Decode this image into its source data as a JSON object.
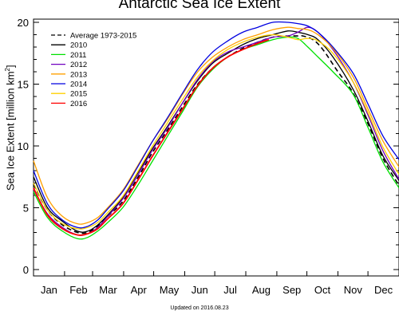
{
  "chart_data": {
    "type": "line",
    "title": "Antarctic Sea Ice Extent",
    "ylabel": "Sea Ice Extent [million km",
    "ylabel_unit_superscript": "2",
    "ylabel_close": "]",
    "xlabel": "",
    "footer": "Updated on 2016.08.23",
    "x_unit": "day of year",
    "xlim": [
      1,
      366
    ],
    "ylim": [
      0,
      20
    ],
    "yticks": [
      0,
      5,
      10,
      15,
      20
    ],
    "months": [
      "Jan",
      "Feb",
      "Mar",
      "Apr",
      "May",
      "Jun",
      "Jul",
      "Aug",
      "Sep",
      "Oct",
      "Nov",
      "Dec"
    ],
    "legend_position": "top-left",
    "grid": false,
    "series": [
      {
        "name": "Average 1973-2015",
        "color": "#000000",
        "dash": true,
        "x": [
          1,
          15,
          30,
          45,
          55,
          65,
          75,
          90,
          105,
          120,
          135,
          150,
          165,
          180,
          195,
          210,
          225,
          240,
          255,
          265,
          270,
          280,
          290,
          305,
          320,
          335,
          350,
          366
        ],
        "y": [
          6.9,
          4.8,
          3.6,
          3.0,
          3.0,
          3.5,
          4.3,
          5.5,
          7.4,
          9.5,
          11.3,
          13.2,
          15.0,
          16.3,
          17.2,
          17.9,
          18.4,
          18.8,
          18.9,
          18.9,
          18.9,
          18.6,
          17.8,
          16.0,
          14.3,
          11.8,
          9.0,
          6.8
        ]
      },
      {
        "name": "2010",
        "color": "#000000",
        "dash": false,
        "x": [
          1,
          15,
          30,
          45,
          55,
          65,
          75,
          90,
          105,
          120,
          135,
          150,
          165,
          180,
          195,
          210,
          225,
          240,
          255,
          265,
          275,
          285,
          300,
          320,
          335,
          350,
          366
        ],
        "y": [
          7.5,
          5.0,
          3.9,
          3.1,
          3.1,
          3.6,
          4.4,
          5.8,
          7.8,
          9.8,
          11.6,
          13.5,
          15.3,
          16.7,
          17.5,
          18.2,
          18.7,
          19.0,
          19.3,
          19.2,
          19.0,
          18.6,
          17.2,
          14.6,
          12.0,
          9.2,
          7.2
        ]
      },
      {
        "name": "2011",
        "color": "#00e000",
        "dash": false,
        "x": [
          1,
          15,
          30,
          45,
          55,
          65,
          75,
          90,
          105,
          120,
          135,
          150,
          165,
          180,
          195,
          210,
          225,
          240,
          255,
          265,
          275,
          285,
          300,
          320,
          335,
          350,
          366
        ],
        "y": [
          6.3,
          4.2,
          3.1,
          2.5,
          2.6,
          3.1,
          3.8,
          5.0,
          6.8,
          8.8,
          10.8,
          12.8,
          14.8,
          16.2,
          17.2,
          17.8,
          18.2,
          18.6,
          18.8,
          18.7,
          18.0,
          17.2,
          16.0,
          14.2,
          11.5,
          8.7,
          6.6
        ]
      },
      {
        "name": "2012",
        "color": "#7000c0",
        "dash": false,
        "x": [
          1,
          15,
          30,
          45,
          55,
          65,
          75,
          90,
          105,
          120,
          135,
          150,
          165,
          180,
          195,
          210,
          225,
          240,
          255,
          265,
          275,
          285,
          300,
          320,
          335,
          350,
          366
        ],
        "y": [
          6.5,
          4.5,
          3.4,
          2.8,
          2.9,
          3.4,
          4.3,
          5.7,
          7.6,
          9.7,
          11.5,
          13.5,
          15.4,
          16.8,
          17.6,
          18.0,
          18.4,
          18.8,
          18.9,
          19.2,
          19.6,
          19.2,
          17.8,
          15.2,
          12.5,
          9.6,
          7.3
        ]
      },
      {
        "name": "2013",
        "color": "#ffa000",
        "dash": false,
        "x": [
          1,
          15,
          30,
          45,
          55,
          65,
          75,
          90,
          105,
          120,
          135,
          150,
          165,
          180,
          195,
          210,
          225,
          240,
          255,
          265,
          275,
          285,
          300,
          320,
          335,
          350,
          366
        ],
        "y": [
          8.8,
          5.8,
          4.3,
          3.7,
          3.8,
          4.2,
          5.0,
          6.4,
          8.4,
          10.4,
          12.2,
          14.2,
          16.0,
          17.2,
          18.0,
          18.6,
          19.0,
          19.4,
          19.6,
          19.5,
          19.4,
          19.0,
          17.9,
          15.6,
          13.0,
          10.4,
          8.3
        ]
      },
      {
        "name": "2014",
        "color": "#0000e0",
        "dash": false,
        "x": [
          1,
          15,
          30,
          45,
          55,
          65,
          75,
          90,
          105,
          120,
          135,
          150,
          165,
          180,
          195,
          210,
          225,
          240,
          255,
          265,
          275,
          285,
          300,
          320,
          335,
          350,
          366
        ],
        "y": [
          8.0,
          5.3,
          4.0,
          3.4,
          3.5,
          4.0,
          4.9,
          6.3,
          8.3,
          10.4,
          12.3,
          14.3,
          16.2,
          17.6,
          18.5,
          19.2,
          19.6,
          20.0,
          20.0,
          19.9,
          19.7,
          19.2,
          18.0,
          15.9,
          13.4,
          10.8,
          8.9
        ]
      },
      {
        "name": "2015",
        "color": "#ffd000",
        "dash": false,
        "x": [
          1,
          15,
          30,
          45,
          55,
          65,
          75,
          90,
          105,
          120,
          135,
          150,
          165,
          180,
          195,
          210,
          225,
          240,
          255,
          265,
          275,
          285,
          300,
          320,
          335,
          350,
          366
        ],
        "y": [
          7.0,
          4.8,
          3.7,
          3.3,
          3.4,
          3.8,
          4.6,
          5.9,
          7.9,
          10.0,
          11.9,
          13.8,
          15.6,
          16.9,
          17.8,
          18.4,
          18.8,
          19.0,
          18.8,
          18.6,
          18.7,
          18.5,
          17.5,
          15.2,
          12.7,
          9.9,
          7.7
        ]
      },
      {
        "name": "2016",
        "color": "#ff0000",
        "dash": false,
        "x": [
          1,
          15,
          30,
          45,
          55,
          65,
          75,
          90,
          105,
          120,
          135,
          150,
          165,
          180,
          195,
          210,
          225,
          236
        ],
        "y": [
          6.6,
          4.4,
          3.3,
          2.8,
          2.9,
          3.3,
          4.1,
          5.3,
          7.2,
          9.2,
          11.1,
          13.0,
          14.9,
          16.3,
          17.2,
          17.8,
          18.3,
          18.6
        ]
      }
    ]
  }
}
